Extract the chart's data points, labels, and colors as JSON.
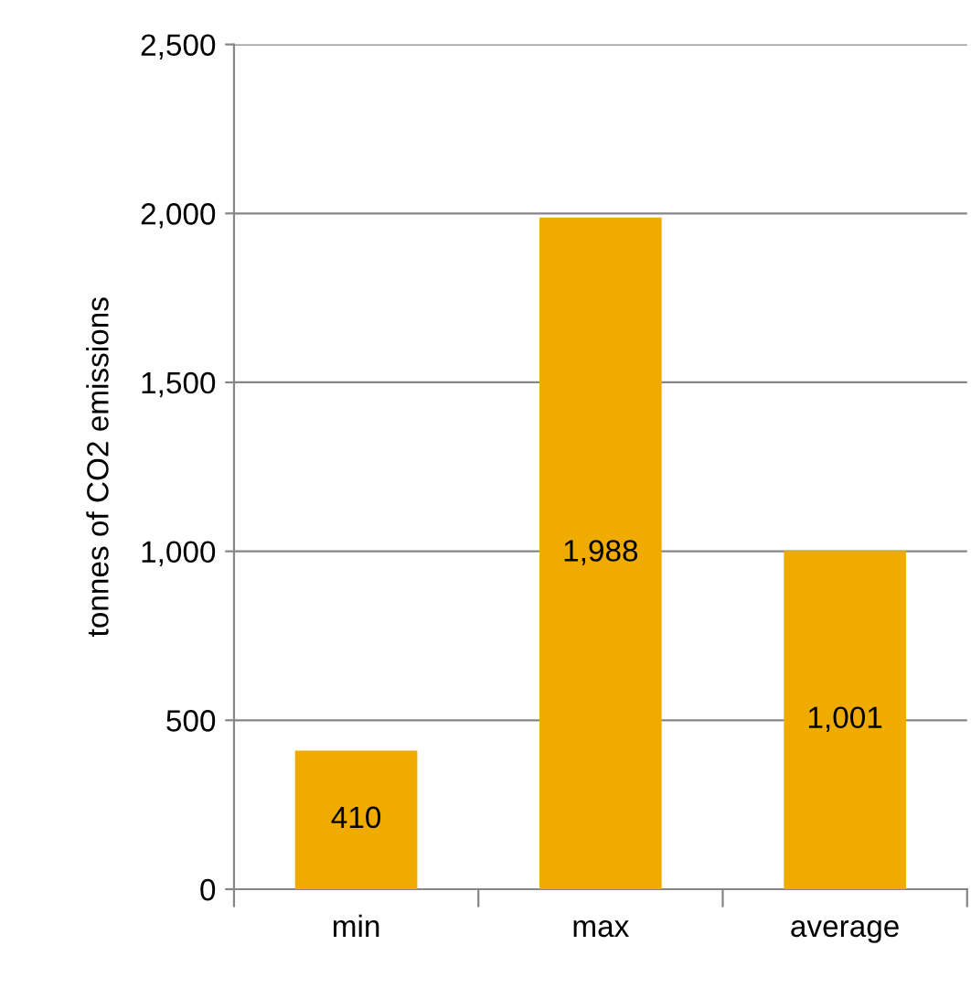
{
  "chart_data": {
    "type": "bar",
    "ylabel": "tonnes of CO2 emissions",
    "categories": [
      "min",
      "max",
      "average"
    ],
    "values": [
      410,
      1988,
      1001
    ],
    "value_labels": [
      "410",
      "1,988",
      "1,001"
    ],
    "color": "#f0ab00",
    "ylim": [
      0,
      2500
    ],
    "yticks": [
      0,
      500,
      {
        "value": 1000,
        "label": "1,000"
      },
      {
        "value": 1500,
        "label": "1,500"
      },
      {
        "value": 2000,
        "label": "2,000"
      },
      {
        "value": 2500,
        "label": "2,500"
      }
    ],
    "grid": "y"
  }
}
